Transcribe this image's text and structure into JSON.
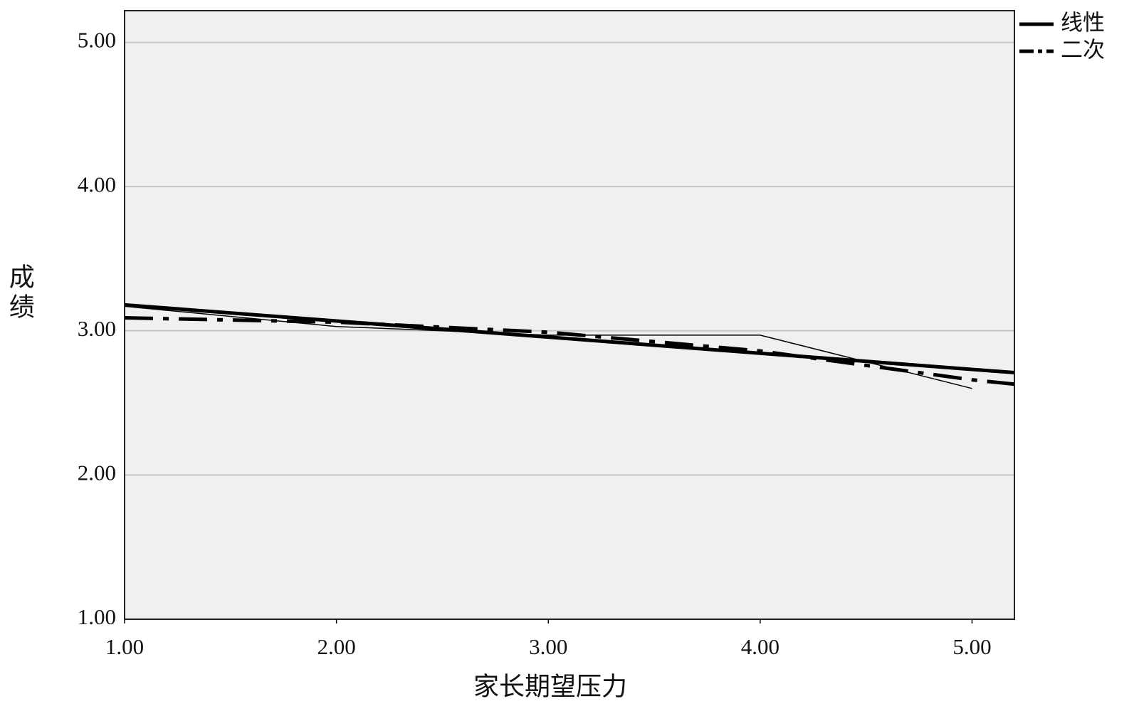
{
  "chart_data": {
    "type": "line",
    "x_label": "家长期望压力",
    "y_label": "成绩",
    "xlim": [
      1,
      5.2
    ],
    "ylim": [
      1,
      5.22
    ],
    "xticks": [
      {
        "value": 1,
        "label": "1.00"
      },
      {
        "value": 2,
        "label": "2.00"
      },
      {
        "value": 3,
        "label": "3.00"
      },
      {
        "value": 4,
        "label": "4.00"
      },
      {
        "value": 5,
        "label": "5.00"
      }
    ],
    "yticks": [
      {
        "value": 1,
        "label": "1.00"
      },
      {
        "value": 2,
        "label": "2.00"
      },
      {
        "value": 3,
        "label": "3.00"
      },
      {
        "value": 4,
        "label": "4.00"
      },
      {
        "value": 5,
        "label": "5.00"
      }
    ],
    "grid": true,
    "legend": "top-right-outside",
    "series": [
      {
        "color": "#000000",
        "line_style": "solid",
        "line_width": 1.5,
        "x": [
          1,
          2,
          3,
          4,
          5
        ],
        "values": [
          3.17,
          3.03,
          2.97,
          2.97,
          2.6
        ]
      },
      {
        "name": "线性",
        "color": "#000000",
        "line_style": "solid",
        "line_width": 5,
        "x": [
          1,
          5.2
        ],
        "values": [
          3.18,
          2.71
        ]
      },
      {
        "name": "二次",
        "color": "#000000",
        "line_style": "dashdot",
        "line_width": 5,
        "x": [
          1,
          2,
          3,
          4,
          5,
          5.2
        ],
        "values": [
          3.09,
          3.06,
          2.99,
          2.86,
          2.66,
          2.63
        ]
      }
    ]
  }
}
